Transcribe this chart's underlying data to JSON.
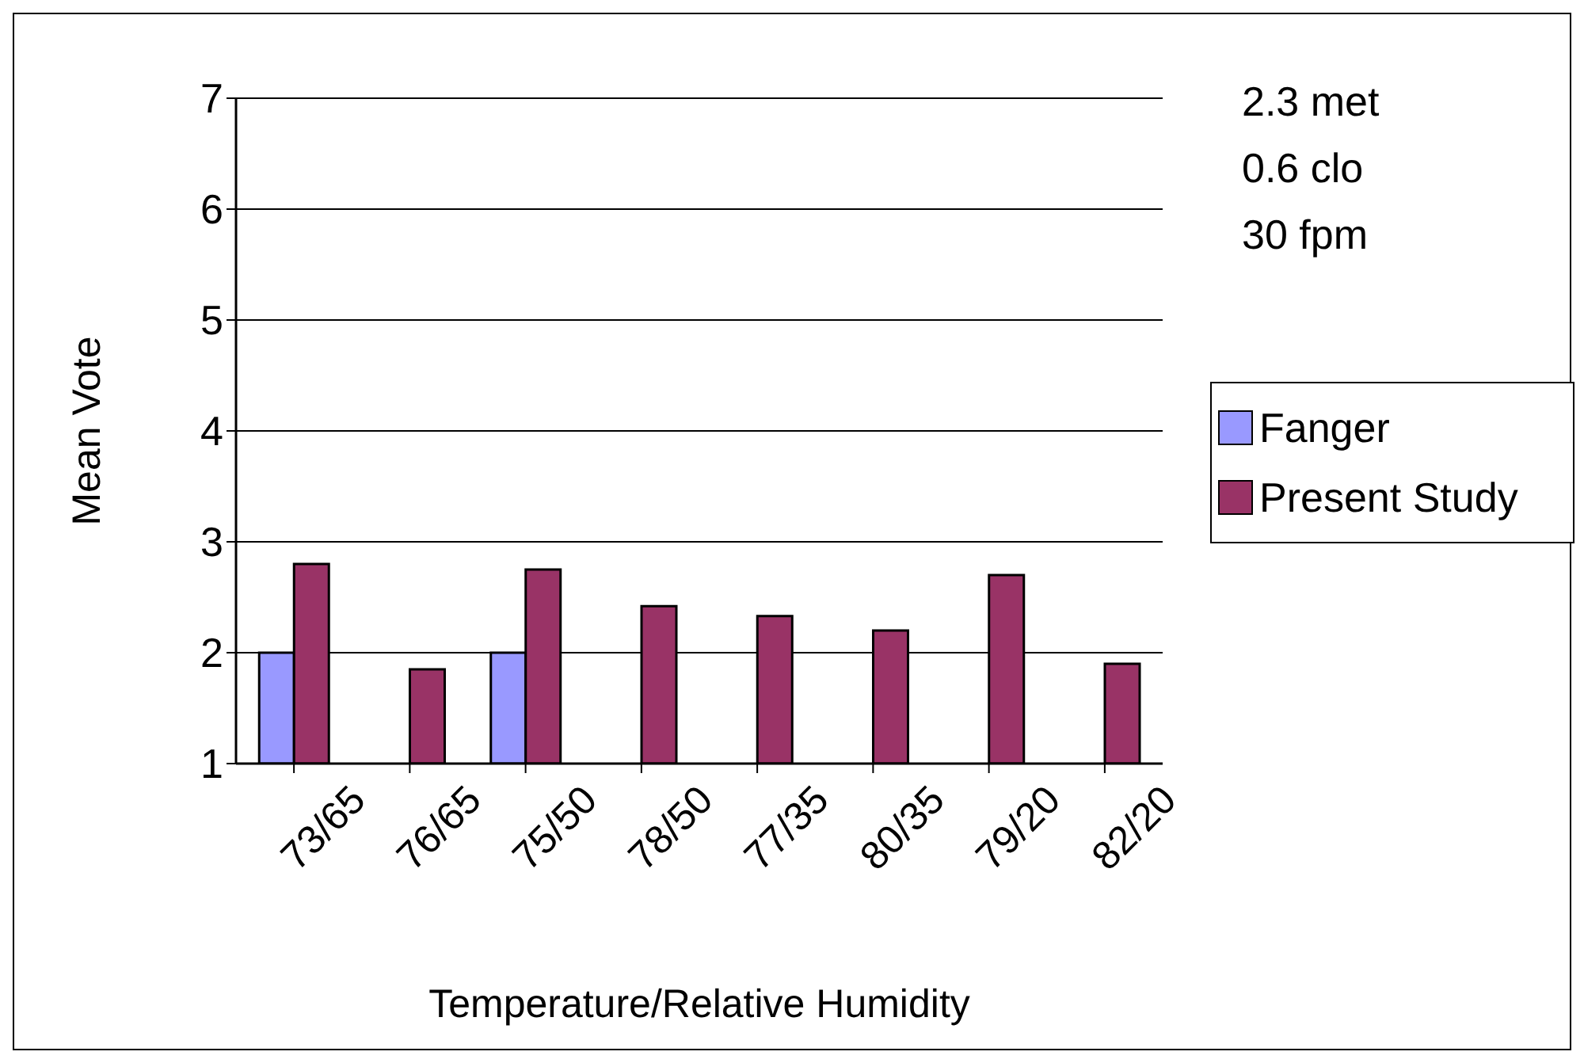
{
  "chart_data": {
    "type": "bar",
    "xlabel": "Temperature/Relative Humidity",
    "ylabel": "Mean Vote",
    "categories": [
      "73/65",
      "76/65",
      "75/50",
      "78/50",
      "77/35",
      "80/35",
      "79/20",
      "82/20"
    ],
    "series": [
      {
        "name": "Fanger",
        "color": "#9999ff",
        "values": [
          2,
          null,
          2,
          null,
          null,
          null,
          null,
          null
        ]
      },
      {
        "name": "Present Study",
        "color": "#993366",
        "values": [
          2.8,
          1.85,
          2.75,
          2.42,
          2.33,
          2.2,
          2.7,
          1.9
        ]
      }
    ],
    "ylim": [
      1,
      7
    ],
    "yticks": [
      1,
      2,
      3,
      4,
      5,
      6,
      7
    ],
    "grid": "y",
    "legend": "right",
    "annotations": [
      "2.3 met",
      "0.6 clo",
      "30 fpm"
    ]
  }
}
